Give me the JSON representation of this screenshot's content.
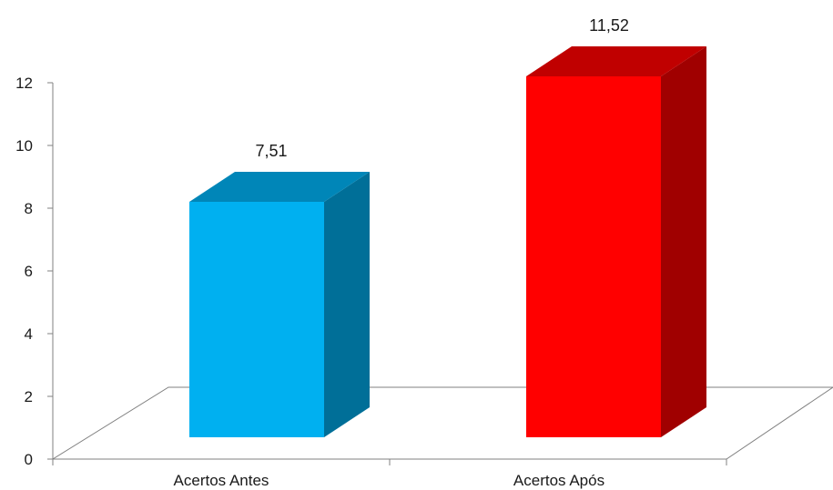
{
  "chart_data": {
    "type": "bar",
    "categories": [
      "Acertos Antes",
      "Acertos Após"
    ],
    "values": [
      7.51,
      11.52
    ],
    "value_labels": [
      "7,51",
      "11,52"
    ],
    "ylim": [
      0,
      12
    ],
    "yticks": [
      0,
      2,
      4,
      6,
      8,
      10,
      12
    ],
    "grid": false,
    "legend": "none",
    "title": "",
    "xlabel": "",
    "ylabel": "",
    "bar_colors": [
      {
        "front": "#00b0f0",
        "top": "#0086b8",
        "side": "#006f98"
      },
      {
        "front": "#ff0000",
        "top": "#c00000",
        "side": "#a00000"
      }
    ],
    "axis_color": "#808080"
  }
}
